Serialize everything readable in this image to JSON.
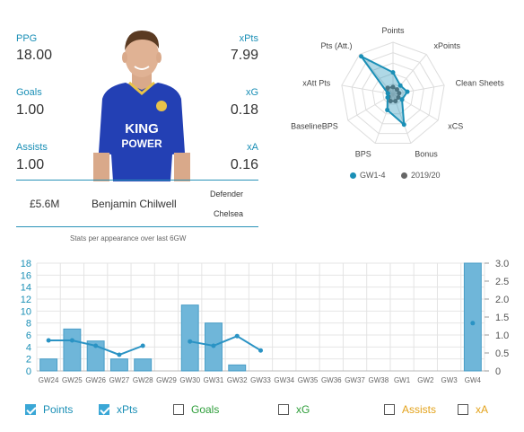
{
  "stats": {
    "ppg": {
      "label": "PPG",
      "value": "18.00"
    },
    "goals": {
      "label": "Goals",
      "value": "1.00"
    },
    "assists": {
      "label": "Assists",
      "value": "1.00"
    },
    "xpts": {
      "label": "xPts",
      "value": "7.99"
    },
    "xg": {
      "label": "xG",
      "value": "0.18"
    },
    "xa": {
      "label": "xA",
      "value": "0.16"
    }
  },
  "player": {
    "price": "£5.6M",
    "name": "Benjamin Chilwell",
    "position": "Defender",
    "team": "Chelsea",
    "shirt_sponsor_top": "KING",
    "shirt_sponsor_bottom": "POWER"
  },
  "caption": "Stats per appearance over last 6GW",
  "radar": {
    "axes": [
      "Points",
      "xPoints",
      "Clean Sheets",
      "xCS",
      "Bonus",
      "BPS",
      "BaselineBPS",
      "xAtt Pts",
      "Pts (Att.)"
    ],
    "series": [
      {
        "name": "GW1-4",
        "color": "#1a8fb6",
        "values": [
          0.42,
          0.22,
          0.28,
          0.2,
          0.62,
          0.32,
          0.12,
          0.1,
          0.95
        ]
      },
      {
        "name": "2019/20",
        "color": "#666666",
        "values": [
          0.14,
          0.12,
          0.12,
          0.12,
          0.14,
          0.14,
          0.1,
          0.1,
          0.16
        ]
      }
    ]
  },
  "chart_data": {
    "type": "bar",
    "categories": [
      "GW24",
      "GW25",
      "GW26",
      "GW27",
      "GW28",
      "GW29",
      "GW30",
      "GW31",
      "GW32",
      "GW33",
      "GW34",
      "GW35",
      "GW36",
      "GW37",
      "GW38",
      "GW1",
      "GW2",
      "GW3",
      "GW4"
    ],
    "ylim_left": [
      0,
      18
    ],
    "yticks_left": [
      0,
      2,
      4,
      6,
      8,
      10,
      12,
      14,
      16,
      18
    ],
    "ylim_right": [
      0,
      3.0
    ],
    "yticks_right": [
      "0",
      "0.5",
      "1.0",
      "1.5",
      "2.0",
      "2.5",
      "3.0"
    ],
    "series": [
      {
        "name": "Points",
        "axis": "left",
        "color": "#1a8fb6",
        "values": [
          2,
          7,
          5,
          2,
          2,
          null,
          11,
          8,
          1,
          null,
          null,
          null,
          null,
          null,
          null,
          null,
          null,
          null,
          18
        ]
      },
      {
        "name": "xPts",
        "axis": "right",
        "color": "#2a93c4",
        "values": [
          0.85,
          0.85,
          0.7,
          0.45,
          0.7,
          null,
          0.82,
          0.7,
          0.97,
          0.57,
          null,
          null,
          null,
          null,
          null,
          null,
          null,
          null,
          1.33
        ]
      }
    ]
  },
  "toggles": [
    {
      "label": "Points",
      "checked": true,
      "color": "#1a8fb6"
    },
    {
      "label": "xPts",
      "checked": true,
      "color": "#1a8fb6"
    },
    {
      "label": "Goals",
      "checked": false,
      "color": "#2e9e3a"
    },
    {
      "label": "xG",
      "checked": false,
      "color": "#2e9e3a"
    },
    {
      "label": "Assists",
      "checked": false,
      "color": "#e3a21a"
    },
    {
      "label": "xA",
      "checked": false,
      "color": "#e3a21a"
    }
  ]
}
